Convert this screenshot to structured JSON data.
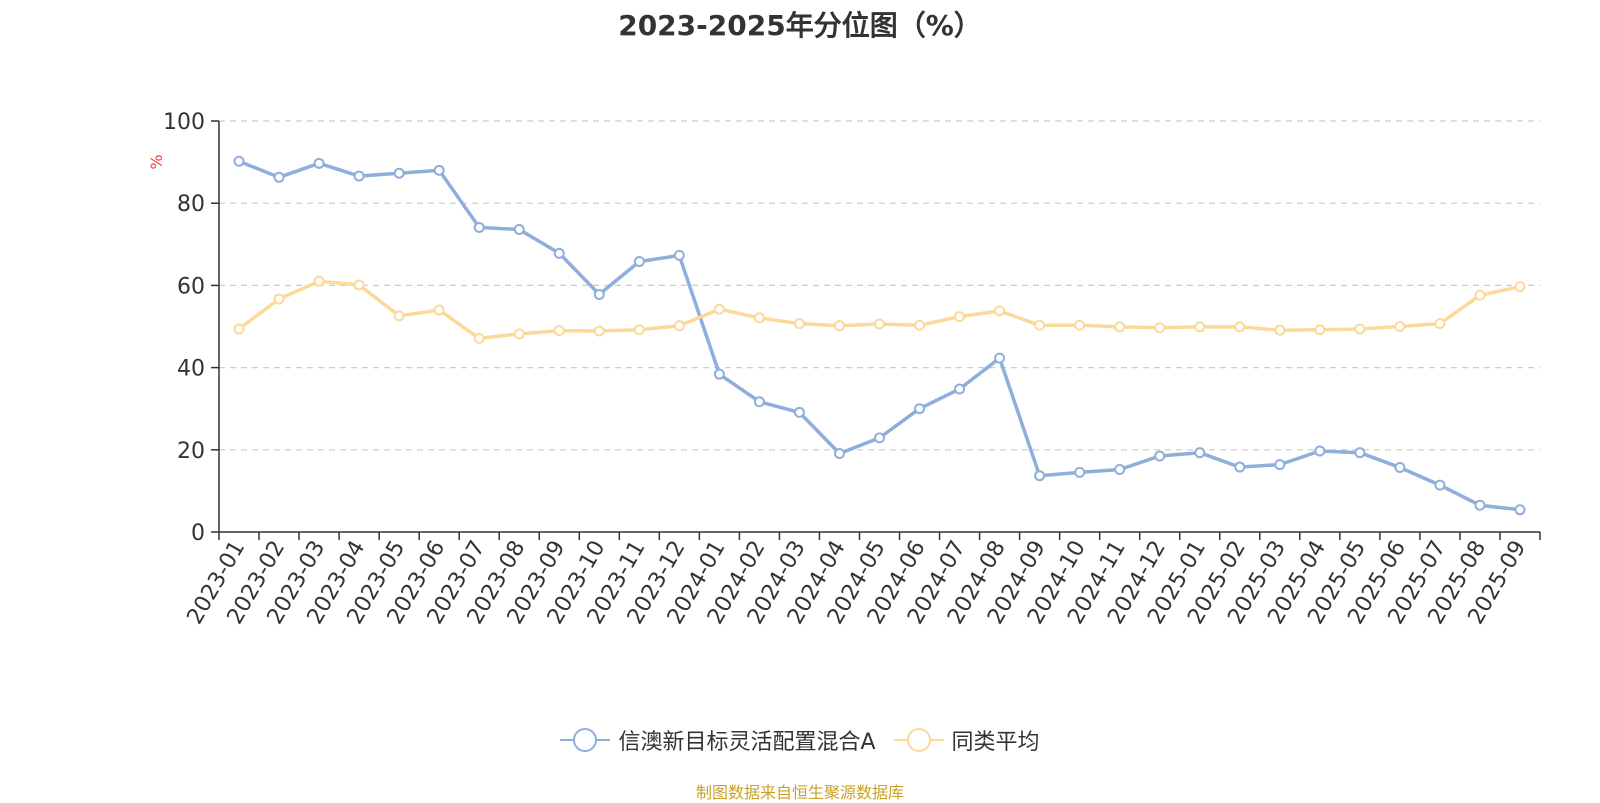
{
  "chart_data": {
    "type": "line",
    "title": "2023-2025年分位图（%）",
    "ylabel": "%",
    "ylim": [
      0,
      100
    ],
    "yticks": [
      0,
      20,
      40,
      60,
      80,
      100
    ],
    "grid": true,
    "legend_position": "bottom",
    "categories": [
      "2023-01",
      "2023-02",
      "2023-03",
      "2023-04",
      "2023-05",
      "2023-06",
      "2023-07",
      "2023-08",
      "2023-09",
      "2023-10",
      "2023-11",
      "2023-12",
      "2024-01",
      "2024-02",
      "2024-03",
      "2024-04",
      "2024-05",
      "2024-06",
      "2024-07",
      "2024-08",
      "2024-09",
      "2024-10",
      "2024-11",
      "2024-12",
      "2025-01",
      "2025-02",
      "2025-03",
      "2025-04",
      "2025-05",
      "2025-06",
      "2025-07",
      "2025-08",
      "2025-09"
    ],
    "series": [
      {
        "name": "信澳新目标灵活配置混合A",
        "color": "#8eaedb",
        "values": [
          90.2,
          86.3,
          89.7,
          86.6,
          87.3,
          88.0,
          74.1,
          73.6,
          67.8,
          57.8,
          65.8,
          67.3,
          38.4,
          31.7,
          29.1,
          19.1,
          22.9,
          30.0,
          34.8,
          42.3,
          13.7,
          14.5,
          15.2,
          18.5,
          19.3,
          15.8,
          16.4,
          19.7,
          19.3,
          15.7,
          11.4,
          6.5,
          5.4
        ]
      },
      {
        "name": "同类平均",
        "color": "#fcd998",
        "values": [
          49.4,
          56.7,
          61.0,
          60.1,
          52.6,
          54.0,
          47.1,
          48.2,
          49.0,
          48.9,
          49.2,
          50.2,
          54.2,
          52.1,
          50.7,
          50.2,
          50.6,
          50.3,
          52.4,
          53.8,
          50.3,
          50.3,
          49.9,
          49.7,
          49.9,
          49.9,
          49.1,
          49.2,
          49.4,
          50.0,
          50.7,
          57.6,
          59.7
        ]
      }
    ]
  },
  "source": "制图数据来自恒生聚源数据库"
}
